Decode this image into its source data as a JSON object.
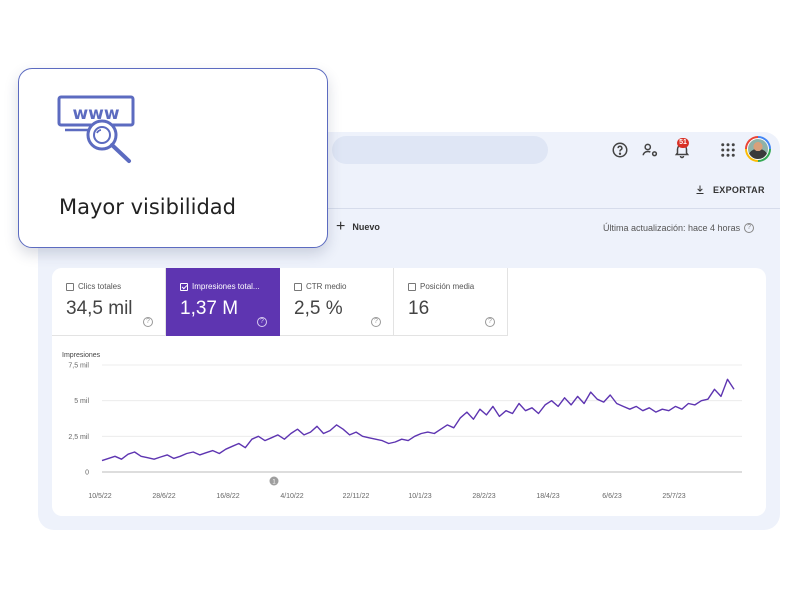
{
  "overlay": {
    "title": "Mayor visibilidad",
    "icon": "www-search-icon"
  },
  "header": {
    "notifications_count": "51",
    "icons": [
      "help-icon",
      "manage-accounts-icon",
      "notifications-icon",
      "apps-icon"
    ]
  },
  "toolbar": {
    "export_label": "EXPORTAR",
    "new_label": "Nuevo",
    "last_update": "Última actualización: hace 4 horas"
  },
  "metrics": [
    {
      "label": "Clics totales",
      "value": "34,5 mil",
      "active": false
    },
    {
      "label": "Impresiones total...",
      "value": "1,37 M",
      "active": true
    },
    {
      "label": "CTR medio",
      "value": "2,5 %",
      "active": false
    },
    {
      "label": "Posición media",
      "value": "16",
      "active": false
    }
  ],
  "colors": {
    "accent": "#5e35b1",
    "overlay_border": "#5c6bc0",
    "badge": "#d93025"
  },
  "chart_data": {
    "type": "line",
    "ylabel": "Impresiones",
    "yticks": [
      "0",
      "2,5 mil",
      "5 mil",
      "7,5 mil"
    ],
    "ytick_values": [
      0,
      2500,
      5000,
      7500
    ],
    "ylim": [
      0,
      7500
    ],
    "xticks": [
      "10/5/22",
      "28/6/22",
      "16/8/22",
      "4/10/22",
      "22/11/22",
      "10/1/23",
      "28/2/23",
      "18/4/23",
      "6/6/23",
      "25/7/23"
    ],
    "annotation": {
      "label": "1",
      "date": "27/9/22"
    },
    "series": [
      {
        "values": [
          800,
          950,
          1100,
          900,
          1250,
          1400,
          1100,
          1000,
          900,
          1050,
          1200,
          950,
          1100,
          1300,
          1400,
          1200,
          1350,
          1500,
          1300,
          1600,
          1800,
          2000,
          1700,
          2300,
          2500,
          2200,
          2400,
          2600,
          2300,
          2700,
          3000,
          2600,
          2800,
          3200,
          2700,
          2900,
          3300,
          3000,
          2600,
          2800,
          2500,
          2400,
          2300,
          2200,
          2000,
          2100,
          2300,
          2200,
          2500,
          2700,
          2800,
          2700,
          3000,
          3300,
          3100,
          3800,
          4200,
          3700,
          4400,
          4000,
          4600,
          3900,
          4300,
          4100,
          4800,
          4300,
          4500,
          4100,
          4700,
          5000,
          4600,
          5200,
          4700,
          5300,
          4800,
          5600,
          5100,
          4900,
          5400,
          4800,
          4600,
          4400,
          4600,
          4300,
          4500,
          4200,
          4400,
          4300,
          4600,
          4400,
          4800,
          4700,
          5000,
          5100,
          5800,
          5300,
          6500,
          5800
        ]
      }
    ]
  }
}
